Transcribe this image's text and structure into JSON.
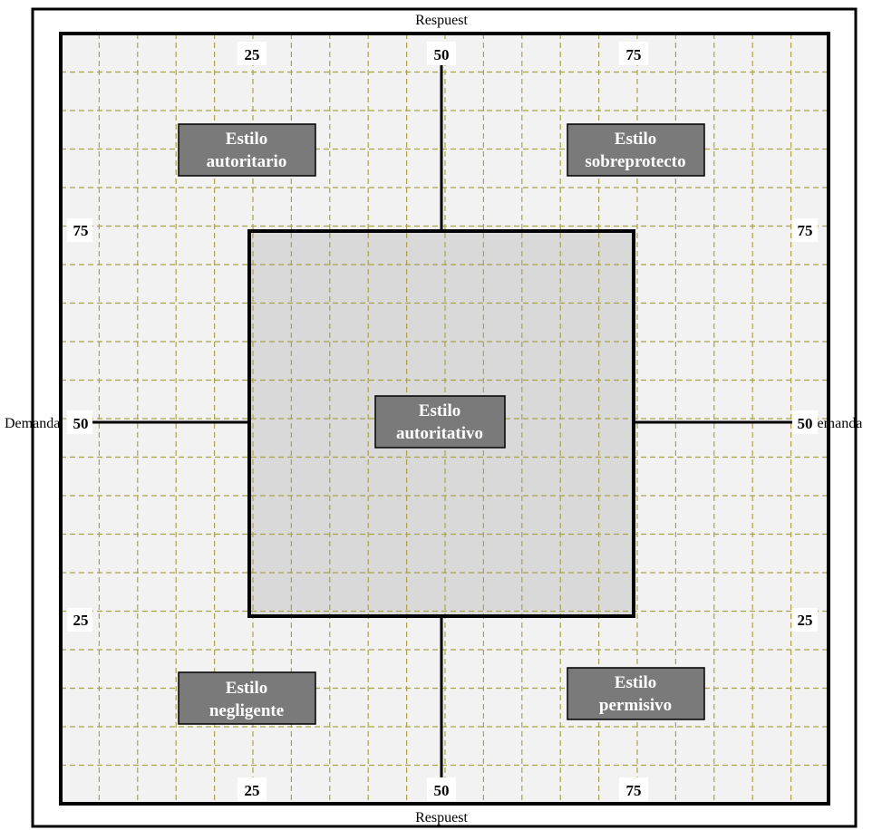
{
  "diagram": {
    "axis_titles": {
      "top": "Respuest",
      "bottom": "Respuest",
      "left": "Demanda",
      "right": "Demanda"
    },
    "ticks": {
      "top": [
        "25",
        "50",
        "75"
      ],
      "bottom": [
        "25",
        "50",
        "75"
      ],
      "left": [
        "75",
        "50",
        "25"
      ],
      "right": [
        "75",
        "50",
        "25"
      ]
    },
    "styles": {
      "authoritarian": [
        "Estilo",
        "autoritario"
      ],
      "overprotective": [
        "Estilo",
        "sobreprotecto"
      ],
      "authoritative": [
        "Estilo",
        "autoritativo"
      ],
      "neglectful": [
        "Estilo",
        "negligente"
      ],
      "permissive": [
        "Estilo",
        "permisivo"
      ]
    },
    "colors": {
      "outer_fill": "#f2f2f2",
      "center_fill": "#d9d9d9",
      "grid": "#a8a24a",
      "label_box": "#7a7a7a"
    }
  }
}
